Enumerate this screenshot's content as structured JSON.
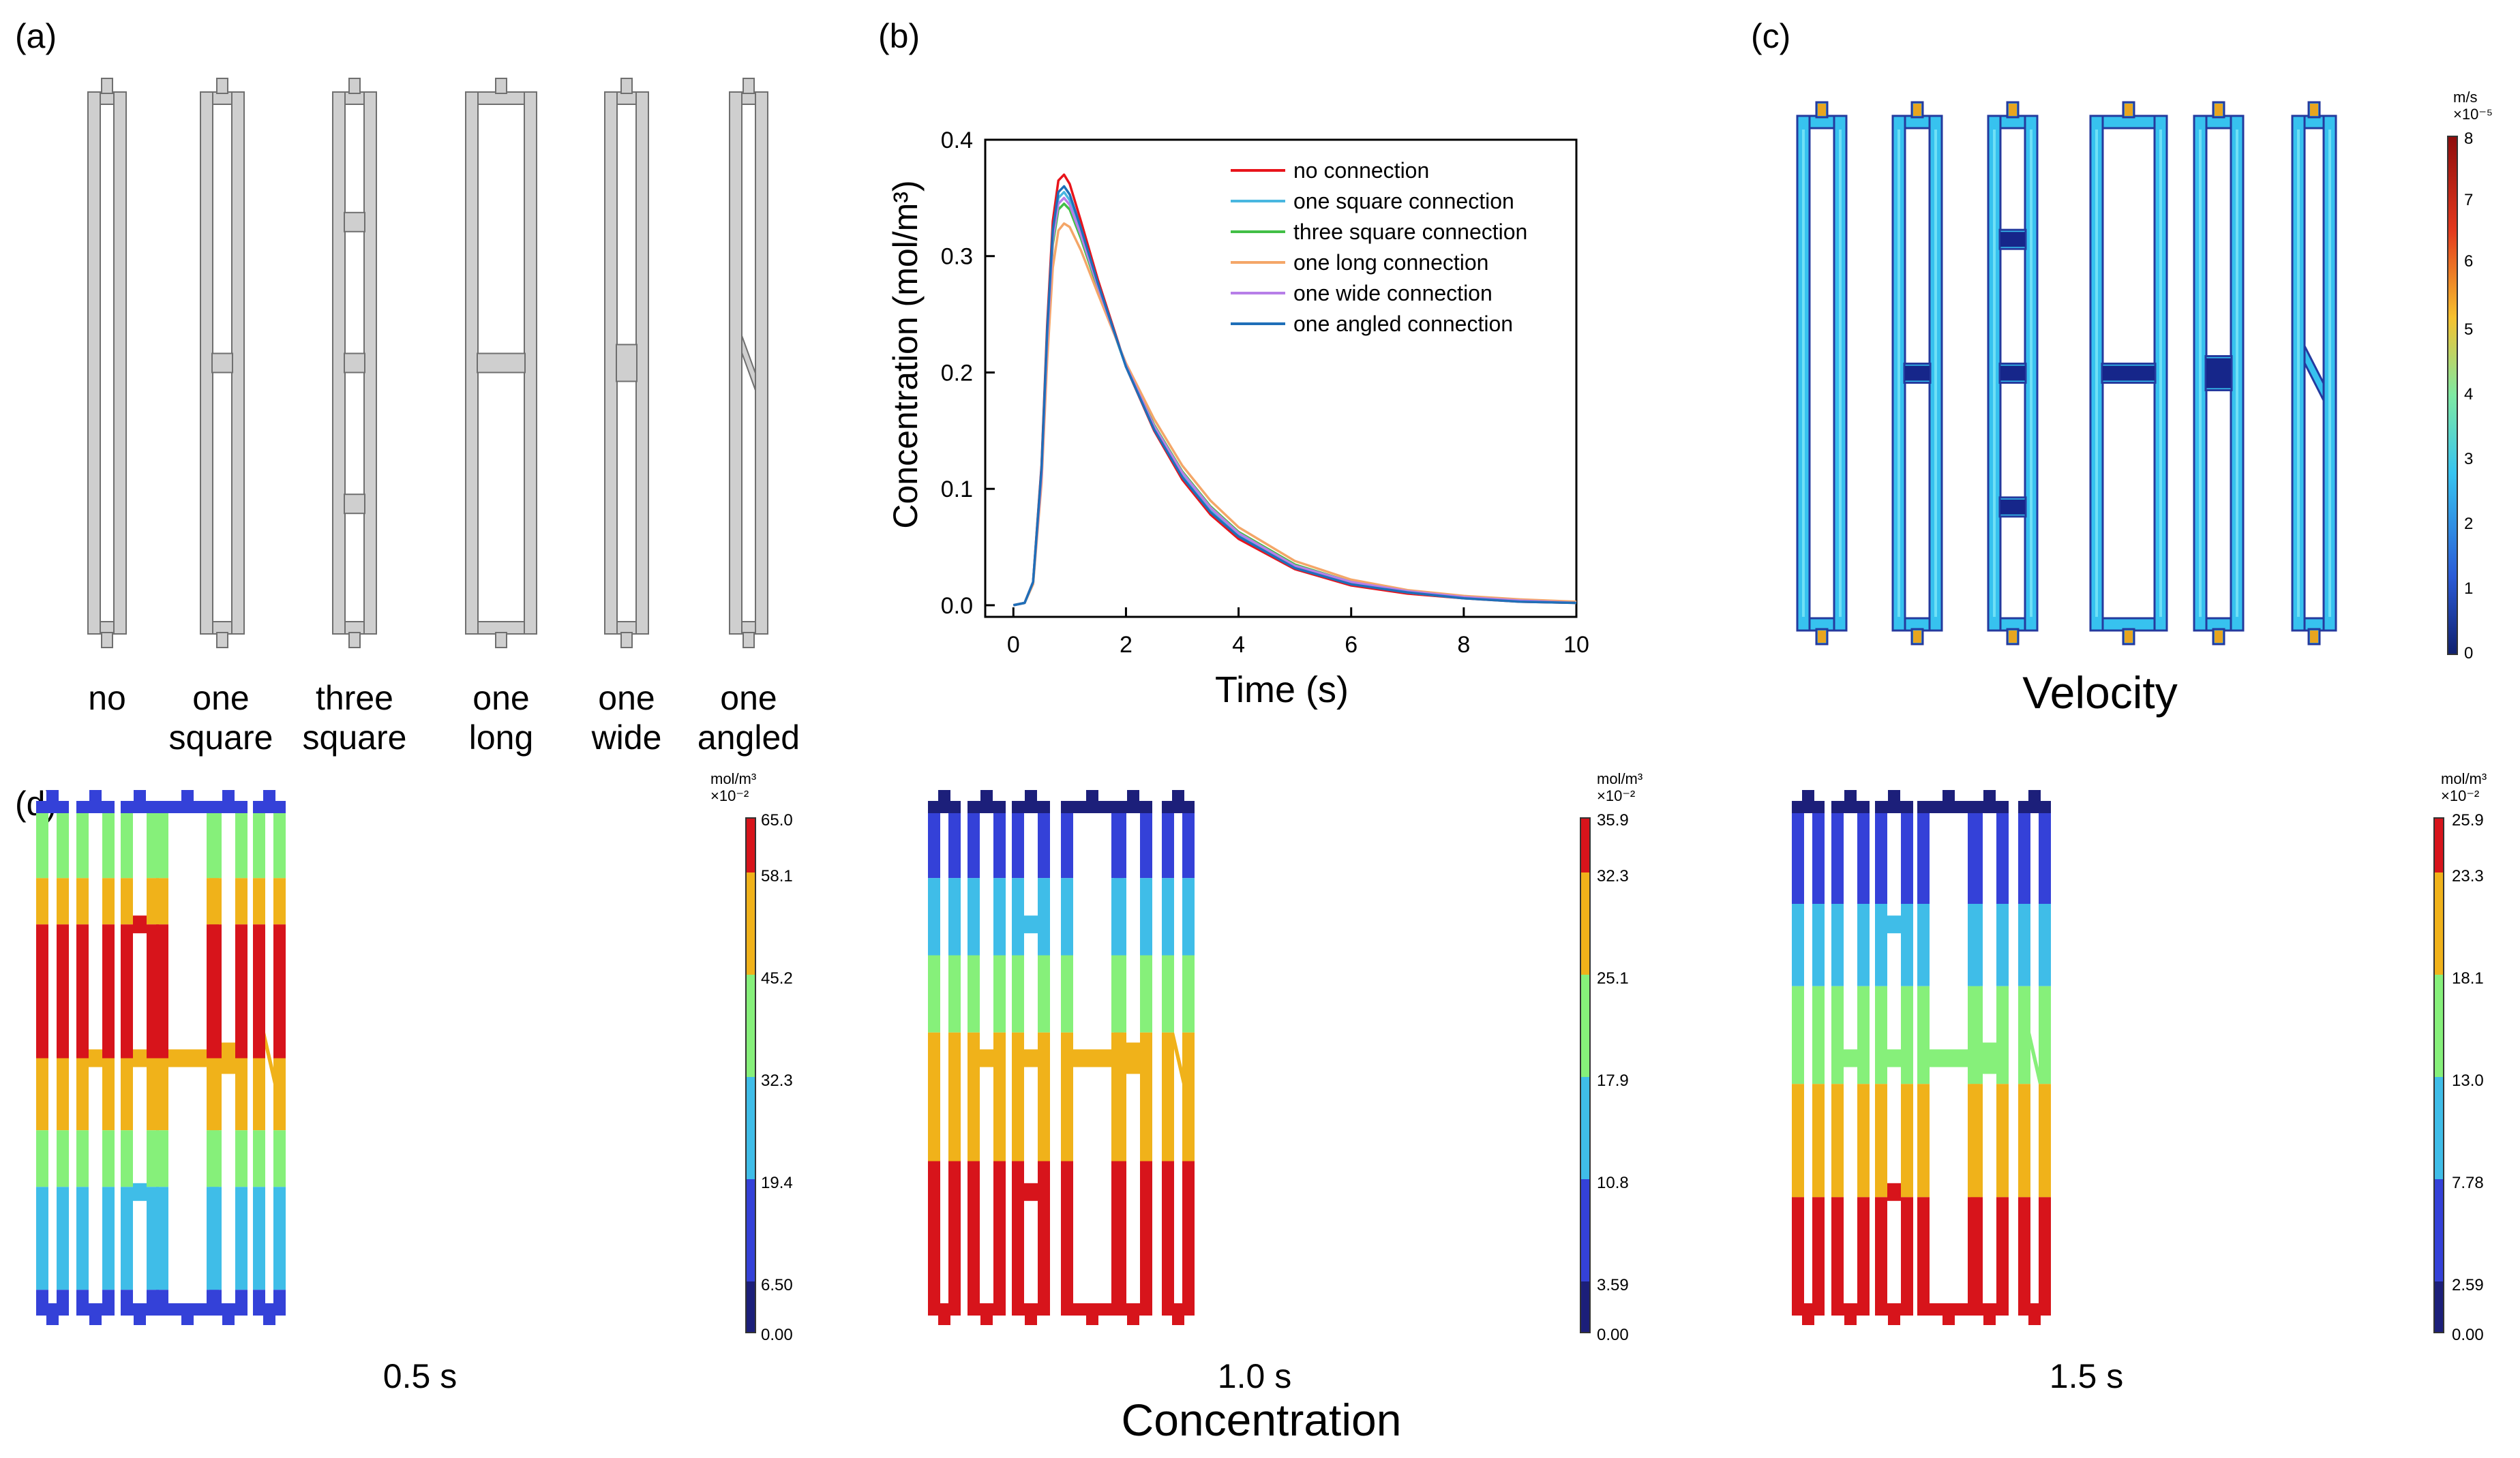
{
  "panels": {
    "a": {
      "letter": "(a)",
      "labels": [
        {
          "l1": "no",
          "l2": ""
        },
        {
          "l1": "one",
          "l2": "square"
        },
        {
          "l1": "three",
          "l2": "square"
        },
        {
          "l1": "one",
          "l2": "long"
        },
        {
          "l1": "one",
          "l2": "wide"
        },
        {
          "l1": "one",
          "l2": "angled"
        }
      ]
    },
    "b": {
      "letter": "(b)"
    },
    "c": {
      "letter": "(c)",
      "title": "Velocity",
      "colorbar": {
        "unit_line1": "m/s",
        "unit_line2": "×10⁻⁵",
        "ticks": [
          "8",
          "7",
          "6",
          "5",
          "4",
          "3",
          "2",
          "1",
          "0"
        ]
      }
    },
    "d": {
      "letter": "(d)",
      "title": "Concentration",
      "unit_line1": "mol/m³",
      "unit_line2": "×10⁻²",
      "snapshots": [
        {
          "time": "0.5 s",
          "ticks": [
            "65.0",
            "58.1",
            "45.2",
            "32.3",
            "19.4",
            "6.50",
            "0.00"
          ]
        },
        {
          "time": "1.0 s",
          "ticks": [
            "35.9",
            "32.3",
            "25.1",
            "17.9",
            "10.8",
            "3.59",
            "0.00"
          ]
        },
        {
          "time": "1.5 s",
          "ticks": [
            "25.9",
            "23.3",
            "18.1",
            "13.0",
            "7.78",
            "2.59",
            "0.00"
          ]
        }
      ]
    }
  },
  "chart_data": {
    "type": "line",
    "title": "",
    "xlabel": "Time (s)",
    "ylabel": "Concentration (mol/m³)",
    "xlim": [
      -0.5,
      10
    ],
    "ylim": [
      -0.01,
      0.4
    ],
    "xticks": [
      "0",
      "2",
      "4",
      "6",
      "8",
      "10"
    ],
    "yticks": [
      "0.0",
      "0.1",
      "0.2",
      "0.3",
      "0.4"
    ],
    "legend_position": "top-right",
    "x": [
      0,
      0.2,
      0.35,
      0.5,
      0.6,
      0.7,
      0.8,
      0.9,
      1.0,
      1.2,
      1.5,
      2.0,
      2.5,
      3.0,
      3.5,
      4.0,
      5.0,
      6.0,
      7.0,
      8.0,
      9.0,
      10.0
    ],
    "series": [
      {
        "name": "no connection",
        "color": "#e8141b",
        "peak": 0.37,
        "values": [
          0,
          0.002,
          0.02,
          0.12,
          0.24,
          0.33,
          0.365,
          0.37,
          0.362,
          0.33,
          0.28,
          0.205,
          0.15,
          0.108,
          0.078,
          0.057,
          0.031,
          0.017,
          0.01,
          0.006,
          0.003,
          0.002
        ]
      },
      {
        "name": "one square connection",
        "color": "#49b7e0",
        "peak": 0.355,
        "values": [
          0,
          0.002,
          0.02,
          0.115,
          0.23,
          0.318,
          0.35,
          0.355,
          0.348,
          0.32,
          0.275,
          0.205,
          0.152,
          0.112,
          0.082,
          0.06,
          0.033,
          0.019,
          0.011,
          0.006,
          0.004,
          0.002
        ]
      },
      {
        "name": "three square connection",
        "color": "#42bf46",
        "peak": 0.345,
        "values": [
          0,
          0.002,
          0.019,
          0.11,
          0.225,
          0.31,
          0.34,
          0.345,
          0.34,
          0.315,
          0.272,
          0.206,
          0.155,
          0.115,
          0.085,
          0.063,
          0.035,
          0.02,
          0.012,
          0.007,
          0.004,
          0.002
        ]
      },
      {
        "name": "one long connection",
        "color": "#f4a668",
        "peak": 0.328,
        "values": [
          0,
          0.002,
          0.018,
          0.105,
          0.21,
          0.29,
          0.322,
          0.328,
          0.325,
          0.305,
          0.268,
          0.208,
          0.16,
          0.12,
          0.09,
          0.067,
          0.038,
          0.022,
          0.013,
          0.008,
          0.005,
          0.003
        ]
      },
      {
        "name": "one wide connection",
        "color": "#b77ee8",
        "peak": 0.35,
        "values": [
          0,
          0.002,
          0.02,
          0.112,
          0.228,
          0.314,
          0.345,
          0.35,
          0.344,
          0.318,
          0.274,
          0.206,
          0.154,
          0.114,
          0.084,
          0.062,
          0.034,
          0.02,
          0.012,
          0.007,
          0.004,
          0.002
        ]
      },
      {
        "name": "one angled connection",
        "color": "#1f6fb8",
        "peak": 0.36,
        "values": [
          0,
          0.002,
          0.02,
          0.118,
          0.235,
          0.322,
          0.355,
          0.36,
          0.353,
          0.324,
          0.277,
          0.205,
          0.151,
          0.11,
          0.08,
          0.059,
          0.032,
          0.018,
          0.011,
          0.006,
          0.003,
          0.002
        ]
      }
    ]
  },
  "colors": {
    "channel_gray_fill": "#cfcfcf",
    "channel_gray_stroke": "#6f6f6f",
    "conc_scale": [
      "#1c1f7a",
      "#3441d8",
      "#3fbde8",
      "#86f07a",
      "#f0b21a",
      "#d7141b"
    ],
    "vel_scale": [
      "#10206e",
      "#2a5bd7",
      "#36c4f0",
      "#7ee9a3",
      "#f6c12e",
      "#e3381d",
      "#8e0c0c"
    ]
  }
}
